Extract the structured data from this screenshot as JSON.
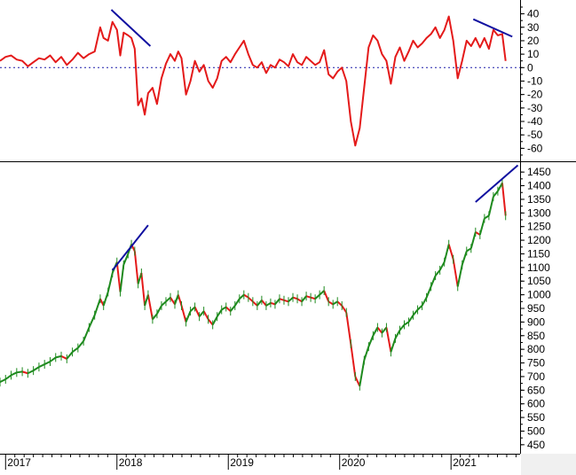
{
  "chart_data": [
    {
      "type": "line",
      "panel": "oscillator",
      "ylim": [
        -67,
        45
      ],
      "yticks": [
        40,
        30,
        20,
        10,
        0,
        -10,
        -20,
        -30,
        -40,
        -50,
        -60
      ],
      "zero_line": {
        "value": 0,
        "style": "dotted",
        "color": "#1a1aa8"
      },
      "grid": false,
      "series": [
        {
          "color": "#e41a1a",
          "points": [
            [
              2016.95,
              5
            ],
            [
              2017.0,
              8
            ],
            [
              2017.05,
              9
            ],
            [
              2017.1,
              6
            ],
            [
              2017.15,
              5
            ],
            [
              2017.2,
              1
            ],
            [
              2017.25,
              4
            ],
            [
              2017.3,
              7
            ],
            [
              2017.35,
              6
            ],
            [
              2017.4,
              9
            ],
            [
              2017.45,
              4
            ],
            [
              2017.5,
              8
            ],
            [
              2017.55,
              2
            ],
            [
              2017.6,
              6
            ],
            [
              2017.65,
              11
            ],
            [
              2017.7,
              7
            ],
            [
              2017.75,
              10
            ],
            [
              2017.8,
              12
            ],
            [
              2017.85,
              30
            ],
            [
              2017.88,
              22
            ],
            [
              2017.92,
              20
            ],
            [
              2017.96,
              34
            ],
            [
              2018.0,
              28
            ],
            [
              2018.03,
              9
            ],
            [
              2018.06,
              26
            ],
            [
              2018.1,
              24
            ],
            [
              2018.13,
              22
            ],
            [
              2018.16,
              14
            ],
            [
              2018.19,
              -28
            ],
            [
              2018.22,
              -23
            ],
            [
              2018.25,
              -35
            ],
            [
              2018.28,
              -19
            ],
            [
              2018.32,
              -15
            ],
            [
              2018.36,
              -27
            ],
            [
              2018.4,
              -8
            ],
            [
              2018.44,
              3
            ],
            [
              2018.48,
              10
            ],
            [
              2018.52,
              5
            ],
            [
              2018.55,
              12
            ],
            [
              2018.58,
              7
            ],
            [
              2018.62,
              -20
            ],
            [
              2018.66,
              -10
            ],
            [
              2018.7,
              5
            ],
            [
              2018.74,
              -3
            ],
            [
              2018.78,
              2
            ],
            [
              2018.82,
              -10
            ],
            [
              2018.86,
              -15
            ],
            [
              2018.9,
              -8
            ],
            [
              2018.94,
              5
            ],
            [
              2018.98,
              8
            ],
            [
              2019.02,
              4
            ],
            [
              2019.06,
              10
            ],
            [
              2019.1,
              15
            ],
            [
              2019.14,
              20
            ],
            [
              2019.18,
              10
            ],
            [
              2019.22,
              2
            ],
            [
              2019.26,
              0
            ],
            [
              2019.3,
              4
            ],
            [
              2019.34,
              -4
            ],
            [
              2019.38,
              2
            ],
            [
              2019.42,
              0
            ],
            [
              2019.46,
              6
            ],
            [
              2019.5,
              4
            ],
            [
              2019.54,
              1
            ],
            [
              2019.58,
              10
            ],
            [
              2019.62,
              4
            ],
            [
              2019.66,
              2
            ],
            [
              2019.7,
              8
            ],
            [
              2019.74,
              5
            ],
            [
              2019.78,
              2
            ],
            [
              2019.82,
              4
            ],
            [
              2019.86,
              13
            ],
            [
              2019.9,
              -5
            ],
            [
              2019.94,
              -8
            ],
            [
              2019.98,
              -3
            ],
            [
              2020.02,
              0
            ],
            [
              2020.06,
              -10
            ],
            [
              2020.1,
              -40
            ],
            [
              2020.14,
              -58
            ],
            [
              2020.18,
              -45
            ],
            [
              2020.22,
              -15
            ],
            [
              2020.26,
              15
            ],
            [
              2020.3,
              24
            ],
            [
              2020.34,
              20
            ],
            [
              2020.38,
              10
            ],
            [
              2020.42,
              5
            ],
            [
              2020.46,
              -12
            ],
            [
              2020.5,
              8
            ],
            [
              2020.54,
              15
            ],
            [
              2020.58,
              5
            ],
            [
              2020.62,
              12
            ],
            [
              2020.66,
              20
            ],
            [
              2020.7,
              15
            ],
            [
              2020.74,
              18
            ],
            [
              2020.78,
              22
            ],
            [
              2020.82,
              25
            ],
            [
              2020.86,
              30
            ],
            [
              2020.9,
              22
            ],
            [
              2020.94,
              28
            ],
            [
              2020.98,
              38
            ],
            [
              2021.02,
              20
            ],
            [
              2021.06,
              -8
            ],
            [
              2021.1,
              5
            ],
            [
              2021.14,
              20
            ],
            [
              2021.18,
              16
            ],
            [
              2021.22,
              22
            ],
            [
              2021.26,
              15
            ],
            [
              2021.3,
              22
            ],
            [
              2021.34,
              14
            ],
            [
              2021.38,
              28
            ],
            [
              2021.42,
              24
            ],
            [
              2021.46,
              25
            ],
            [
              2021.49,
              5
            ]
          ]
        }
      ],
      "trendlines": [
        {
          "from": [
            2017.95,
            43
          ],
          "to": [
            2018.3,
            16
          ],
          "color": "#1010a0"
        },
        {
          "from": [
            2021.2,
            36
          ],
          "to": [
            2021.55,
            23
          ],
          "color": "#1010a0"
        }
      ]
    },
    {
      "type": "line",
      "panel": "price",
      "ylim": [
        430,
        1470
      ],
      "yticks": [
        1450,
        1400,
        1350,
        1300,
        1250,
        1200,
        1150,
        1100,
        1050,
        1000,
        950,
        900,
        850,
        800,
        750,
        700,
        650,
        600,
        550,
        500,
        450
      ],
      "x_axis_labels": [
        "2017",
        "2018",
        "2019",
        "2020",
        "2021"
      ],
      "x_axis_positions": [
        2017.0,
        2018.0,
        2019.0,
        2020.0,
        2021.0
      ],
      "grid": false,
      "series": [
        {
          "color": "#1e8a1e",
          "down_color": "#e41a1a",
          "points": [
            [
              2016.95,
              680
            ],
            [
              2017.0,
              690
            ],
            [
              2017.05,
              705
            ],
            [
              2017.1,
              715
            ],
            [
              2017.15,
              718
            ],
            [
              2017.2,
              712
            ],
            [
              2017.25,
              722
            ],
            [
              2017.3,
              735
            ],
            [
              2017.35,
              745
            ],
            [
              2017.4,
              755
            ],
            [
              2017.45,
              770
            ],
            [
              2017.5,
              775
            ],
            [
              2017.55,
              765
            ],
            [
              2017.6,
              790
            ],
            [
              2017.65,
              805
            ],
            [
              2017.7,
              830
            ],
            [
              2017.75,
              880
            ],
            [
              2017.8,
              925
            ],
            [
              2017.85,
              985
            ],
            [
              2017.88,
              960
            ],
            [
              2017.92,
              1010
            ],
            [
              2017.96,
              1080
            ],
            [
              2018.0,
              1120
            ],
            [
              2018.03,
              1010
            ],
            [
              2018.06,
              1110
            ],
            [
              2018.1,
              1150
            ],
            [
              2018.13,
              1185
            ],
            [
              2018.16,
              1160
            ],
            [
              2018.19,
              1040
            ],
            [
              2018.22,
              1080
            ],
            [
              2018.25,
              960
            ],
            [
              2018.28,
              1000
            ],
            [
              2018.32,
              910
            ],
            [
              2018.36,
              930
            ],
            [
              2018.4,
              960
            ],
            [
              2018.44,
              975
            ],
            [
              2018.48,
              990
            ],
            [
              2018.52,
              965
            ],
            [
              2018.55,
              1000
            ],
            [
              2018.58,
              960
            ],
            [
              2018.62,
              900
            ],
            [
              2018.66,
              940
            ],
            [
              2018.7,
              955
            ],
            [
              2018.74,
              920
            ],
            [
              2018.78,
              940
            ],
            [
              2018.82,
              910
            ],
            [
              2018.86,
              890
            ],
            [
              2018.9,
              920
            ],
            [
              2018.94,
              945
            ],
            [
              2018.98,
              955
            ],
            [
              2019.02,
              940
            ],
            [
              2019.06,
              960
            ],
            [
              2019.1,
              985
            ],
            [
              2019.14,
              1000
            ],
            [
              2019.18,
              990
            ],
            [
              2019.22,
              975
            ],
            [
              2019.26,
              960
            ],
            [
              2019.3,
              980
            ],
            [
              2019.34,
              960
            ],
            [
              2019.38,
              970
            ],
            [
              2019.42,
              965
            ],
            [
              2019.46,
              985
            ],
            [
              2019.5,
              980
            ],
            [
              2019.54,
              975
            ],
            [
              2019.58,
              990
            ],
            [
              2019.62,
              985
            ],
            [
              2019.66,
              975
            ],
            [
              2019.7,
              995
            ],
            [
              2019.74,
              990
            ],
            [
              2019.78,
              985
            ],
            [
              2019.82,
              1000
            ],
            [
              2019.86,
              1015
            ],
            [
              2019.9,
              975
            ],
            [
              2019.94,
              965
            ],
            [
              2019.98,
              975
            ],
            [
              2020.02,
              960
            ],
            [
              2020.06,
              935
            ],
            [
              2020.1,
              820
            ],
            [
              2020.14,
              700
            ],
            [
              2020.18,
              665
            ],
            [
              2020.22,
              760
            ],
            [
              2020.26,
              810
            ],
            [
              2020.3,
              850
            ],
            [
              2020.34,
              880
            ],
            [
              2020.38,
              860
            ],
            [
              2020.42,
              880
            ],
            [
              2020.46,
              790
            ],
            [
              2020.5,
              840
            ],
            [
              2020.54,
              870
            ],
            [
              2020.58,
              890
            ],
            [
              2020.62,
              900
            ],
            [
              2020.66,
              925
            ],
            [
              2020.7,
              945
            ],
            [
              2020.74,
              960
            ],
            [
              2020.78,
              990
            ],
            [
              2020.82,
              1030
            ],
            [
              2020.86,
              1070
            ],
            [
              2020.9,
              1090
            ],
            [
              2020.94,
              1120
            ],
            [
              2020.98,
              1185
            ],
            [
              2021.02,
              1130
            ],
            [
              2021.06,
              1030
            ],
            [
              2021.1,
              1110
            ],
            [
              2021.14,
              1160
            ],
            [
              2021.18,
              1170
            ],
            [
              2021.22,
              1230
            ],
            [
              2021.26,
              1220
            ],
            [
              2021.3,
              1280
            ],
            [
              2021.34,
              1290
            ],
            [
              2021.38,
              1360
            ],
            [
              2021.42,
              1380
            ],
            [
              2021.46,
              1410
            ],
            [
              2021.49,
              1290
            ]
          ]
        }
      ],
      "trendlines": [
        {
          "from": [
            2017.96,
            1090
          ],
          "to": [
            2018.28,
            1255
          ],
          "color": "#1010a0"
        },
        {
          "from": [
            2021.22,
            1340
          ],
          "to": [
            2021.6,
            1475
          ],
          "color": "#1010a0"
        }
      ]
    }
  ]
}
